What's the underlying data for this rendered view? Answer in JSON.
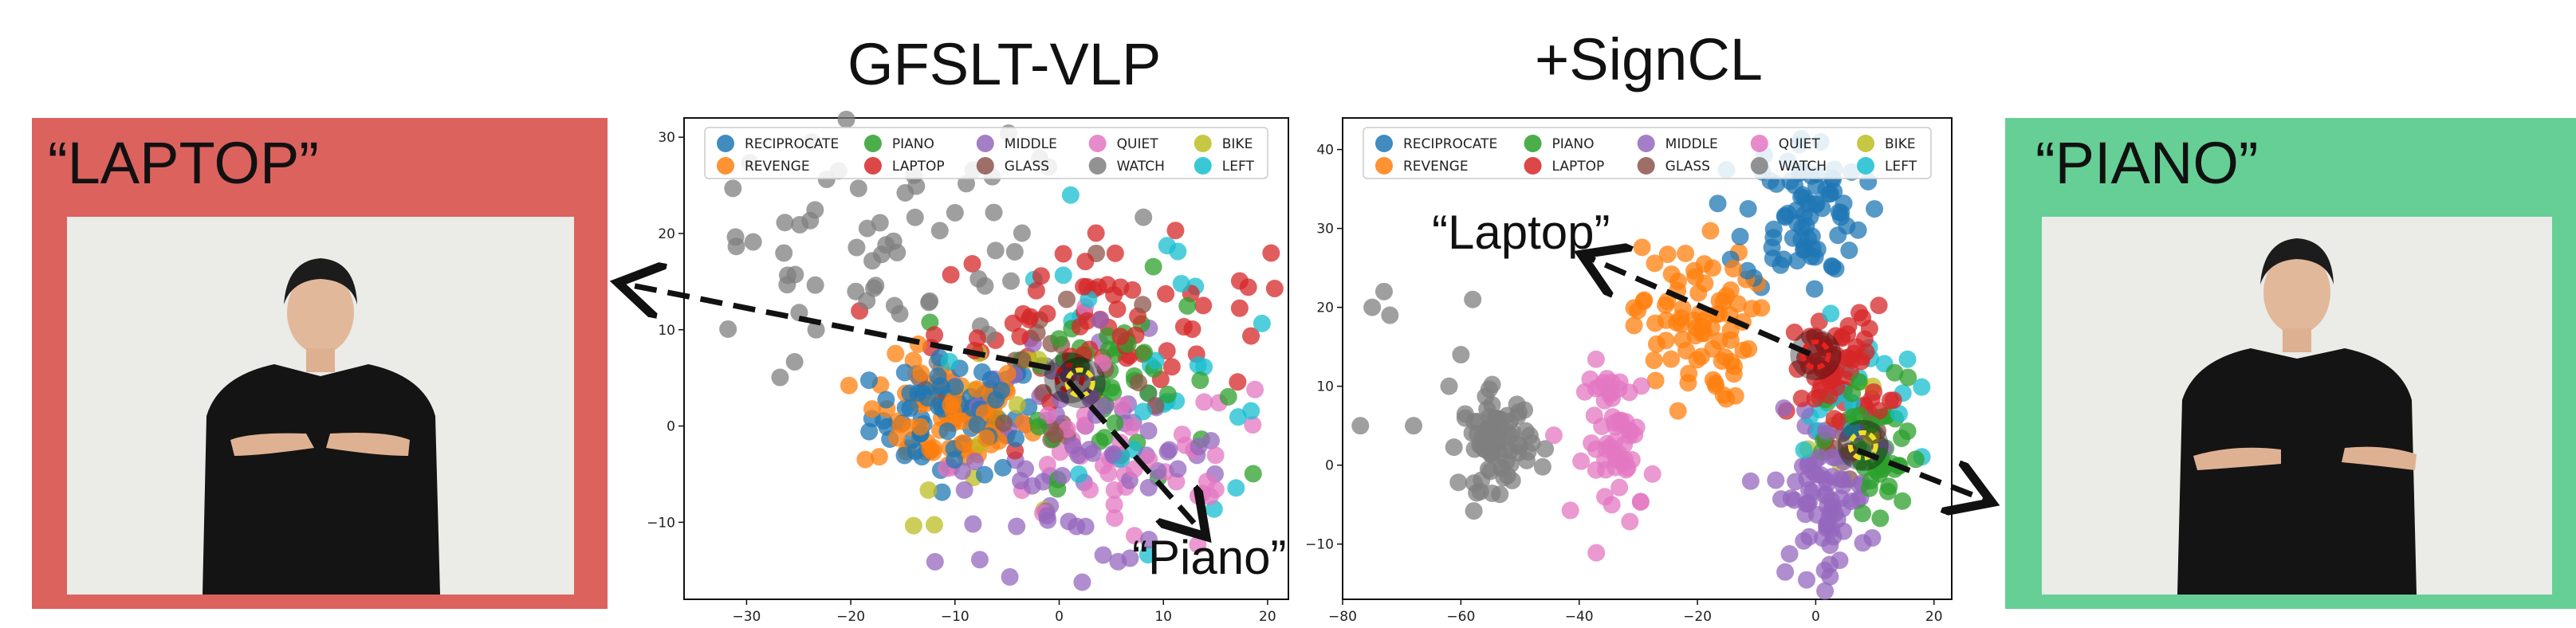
{
  "titles": {
    "left_plot": "GFSLT-VLP",
    "right_plot": "+SignCL"
  },
  "panels": {
    "left": {
      "label": "“LAPTOP”",
      "color": "#dc625e"
    },
    "right": {
      "label": "“PIANO”",
      "color": "#66cf96"
    }
  },
  "annotations": {
    "left_plot_piano": "“Piano”",
    "right_plot_laptop": "“Laptop”"
  },
  "legend": [
    {
      "name": "RECIPROCATE",
      "color": "#1f77b4"
    },
    {
      "name": "PIANO",
      "color": "#2ca02c"
    },
    {
      "name": "MIDDLE",
      "color": "#9467bd"
    },
    {
      "name": "QUIET",
      "color": "#e377c2"
    },
    {
      "name": "BIKE",
      "color": "#bcbd22"
    },
    {
      "name": "REVENGE",
      "color": "#ff7f0e"
    },
    {
      "name": "LAPTOP",
      "color": "#d62728"
    },
    {
      "name": "GLASS",
      "color": "#8c564b"
    },
    {
      "name": "WATCH",
      "color": "#7f7f7f"
    },
    {
      "name": "LEFT",
      "color": "#17becf"
    }
  ],
  "chart_data": [
    {
      "type": "scatter",
      "title": "GFSLT-VLP",
      "xlim": [
        -36,
        22
      ],
      "ylim": [
        -18,
        32
      ],
      "xticks": [
        -30,
        -20,
        -10,
        0,
        10,
        20
      ],
      "yticks": [
        -10,
        0,
        10,
        20,
        30
      ],
      "grid": false,
      "legend_position": "top",
      "clusters": [
        {
          "name": "RECIPROCATE",
          "cx": -10,
          "cy": 1,
          "sx": 4,
          "sy": 3,
          "n": 70
        },
        {
          "name": "REVENGE",
          "cx": -11,
          "cy": 1,
          "sx": 4,
          "sy": 3,
          "n": 80
        },
        {
          "name": "PIANO",
          "cx": 5,
          "cy": 5,
          "sx": 5,
          "sy": 5,
          "n": 50
        },
        {
          "name": "LAPTOP",
          "cx": 4,
          "cy": 11,
          "sx": 8,
          "sy": 4,
          "n": 70
        },
        {
          "name": "MIDDLE",
          "cx": 2,
          "cy": -3,
          "sx": 7,
          "sy": 6,
          "n": 80
        },
        {
          "name": "QUIET",
          "cx": 6,
          "cy": -4,
          "sx": 8,
          "sy": 5,
          "n": 50
        },
        {
          "name": "WATCH",
          "cx": -16,
          "cy": 17,
          "sx": 10,
          "sy": 7,
          "n": 70
        },
        {
          "name": "GLASS",
          "cx": 0,
          "cy": 6,
          "sx": 6,
          "sy": 5,
          "n": 25
        },
        {
          "name": "BIKE",
          "cx": -4,
          "cy": 0,
          "sx": 6,
          "sy": 5,
          "n": 12
        },
        {
          "name": "LEFT",
          "cx": 8,
          "cy": 6,
          "sx": 8,
          "sy": 8,
          "n": 30
        }
      ],
      "highlights": [
        {
          "label": "LAPTOP",
          "x": 1,
          "y": 5
        },
        {
          "label": "PIANO",
          "x": 2,
          "y": 4.5
        }
      ]
    },
    {
      "type": "scatter",
      "title": "+SignCL",
      "xlim": [
        -80,
        23
      ],
      "ylim": [
        -17,
        44
      ],
      "xticks": [
        -80,
        -60,
        -40,
        -20,
        0,
        20
      ],
      "yticks": [
        -10,
        0,
        10,
        20,
        30,
        40
      ],
      "grid": false,
      "legend_position": "top",
      "clusters": [
        {
          "name": "RECIPROCATE",
          "cx": -2,
          "cy": 32,
          "sx": 5,
          "sy": 5,
          "n": 80
        },
        {
          "name": "REVENGE",
          "cx": -21,
          "cy": 18,
          "sx": 5,
          "sy": 5,
          "n": 80
        },
        {
          "name": "PIANO",
          "cx": 10,
          "cy": 1,
          "sx": 4,
          "sy": 5,
          "n": 45
        },
        {
          "name": "LAPTOP",
          "cx": 4,
          "cy": 12,
          "sx": 4,
          "sy": 4,
          "n": 70
        },
        {
          "name": "MIDDLE",
          "cx": 1,
          "cy": -4,
          "sx": 4,
          "sy": 5,
          "n": 80
        },
        {
          "name": "QUIET",
          "cx": -33,
          "cy": 3,
          "sx": 3,
          "sy": 5,
          "n": 60
        },
        {
          "name": "WATCH",
          "cx": -54,
          "cy": 3,
          "sx": 3,
          "sy": 3,
          "n": 80
        },
        {
          "name": "GLASS",
          "cx": 6,
          "cy": 3,
          "sx": 3,
          "sy": 2,
          "n": 10
        },
        {
          "name": "BIKE",
          "cx": 4,
          "cy": 6,
          "sx": 5,
          "sy": 4,
          "n": 6
        },
        {
          "name": "LEFT",
          "cx": 8,
          "cy": 8,
          "sx": 5,
          "sy": 5,
          "n": 20
        }
      ],
      "extra_points": [
        {
          "name": "WATCH",
          "points": [
            [
              -73,
              22
            ],
            [
              -75,
              20
            ],
            [
              -72,
              19
            ],
            [
              -58,
              21
            ],
            [
              -60,
              14
            ],
            [
              -62,
              10
            ],
            [
              -68,
              5
            ],
            [
              -77,
              5
            ]
          ]
        }
      ],
      "highlights": [
        {
          "label": "LAPTOP",
          "x": 0,
          "y": 14
        },
        {
          "label": "PIANO",
          "x": 8,
          "y": 2.5
        }
      ]
    }
  ]
}
